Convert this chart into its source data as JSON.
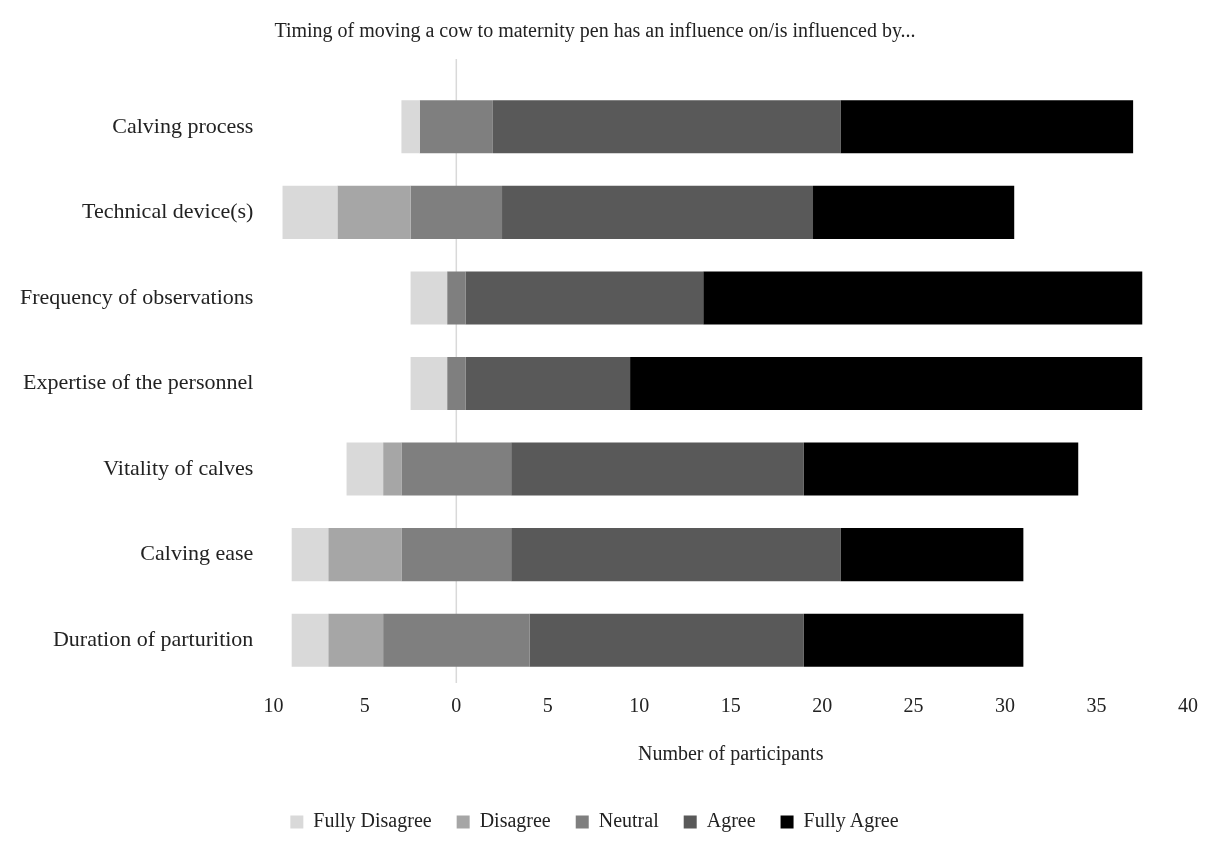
{
  "chart_data": {
    "type": "bar",
    "orientation": "horizontal",
    "title": "Timing of moving a cow to maternity pen has an influence on/is influenced by...",
    "xlabel": "Number of participants",
    "categories": [
      "Calving process",
      "Technical device(s)",
      "Frequency of observations",
      "Expertise of the personnel",
      "Vitality of calves",
      "Calving ease",
      "Duration of parturition"
    ],
    "series": [
      {
        "name": "Fully Disagree",
        "color": "#d9d9d9",
        "values": [
          1,
          3,
          2,
          2,
          2,
          2,
          2
        ],
        "base": [
          -3,
          -9.5,
          -2.5,
          -2.5,
          -6,
          -9,
          -9
        ]
      },
      {
        "name": "Disagree",
        "color": "#a6a6a6",
        "values": [
          null,
          4,
          null,
          null,
          1,
          4,
          3
        ],
        "base": [
          null,
          -6.5,
          null,
          null,
          -4,
          -7,
          -7
        ]
      },
      {
        "name": "Neutral",
        "color": "#7f7f7f",
        "values": [
          4,
          5,
          1,
          1,
          6,
          6,
          8
        ],
        "base": [
          -2,
          -2.5,
          -0.5,
          -0.5,
          -3,
          -3,
          -4
        ]
      },
      {
        "name": "Agree",
        "color": "#595959",
        "values": [
          19,
          17,
          13,
          9,
          16,
          18,
          15
        ],
        "base": [
          2,
          2.5,
          0.5,
          0.5,
          3,
          3,
          4
        ]
      },
      {
        "name": "Fully Agree",
        "color": "#000000",
        "values": [
          16,
          11,
          24,
          28,
          15,
          10,
          12
        ],
        "base": [
          21,
          19.5,
          13.5,
          9.5,
          19,
          21,
          19
        ]
      }
    ],
    "xlim": [
      -10,
      40
    ],
    "xticks": [
      {
        "value": -10,
        "label": "10"
      },
      {
        "value": -5,
        "label": "5"
      },
      0,
      5,
      10,
      15,
      20,
      25,
      30,
      35,
      40
    ],
    "ref_lines": [
      {
        "axis": "x",
        "value": 0,
        "color": "#d9d9d9"
      }
    ],
    "grid": false,
    "legend": "bottom"
  }
}
